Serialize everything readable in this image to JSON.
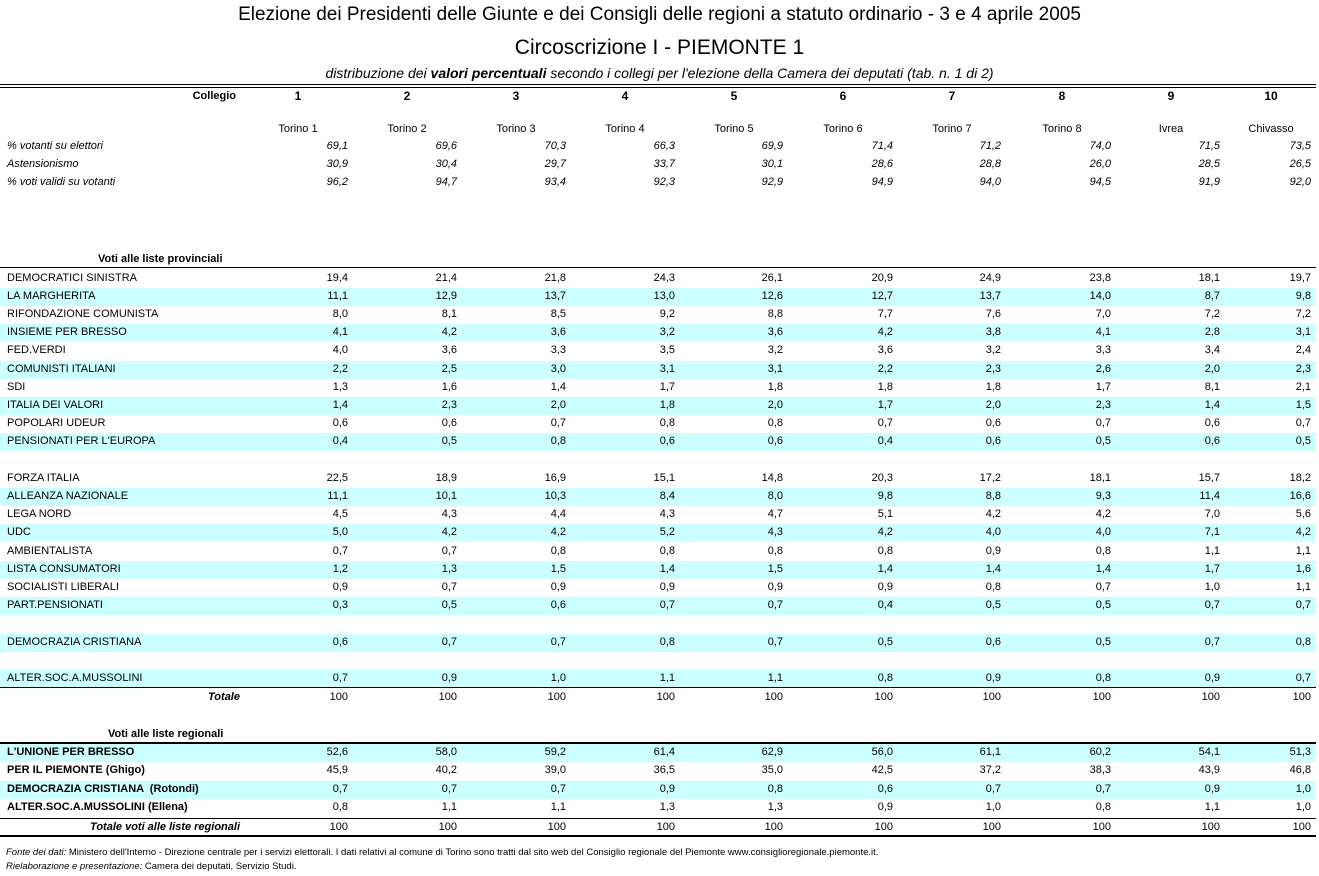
{
  "header": {
    "title": "Elezione dei Presidenti delle Giunte e dei Consigli delle regioni a statuto ordinario - 3 e 4 aprile 2005",
    "subtitle": "Circoscrizione I - PIEMONTE 1",
    "caption": [
      "distribuzione dei ",
      "valori percentuali",
      " secondo i collegi per l'elezione della Camera dei deputati (tab. n. 1 di 2)"
    ]
  },
  "columns": {
    "label": "Collegio",
    "collegi": [
      {
        "number": "1",
        "name": "Torino 1"
      },
      {
        "number": "2",
        "name": "Torino 2"
      },
      {
        "number": "3",
        "name": "Torino 3"
      },
      {
        "number": "4",
        "name": "Torino 4"
      },
      {
        "number": "5",
        "name": "Torino 5"
      },
      {
        "number": "6",
        "name": "Torino 6"
      },
      {
        "number": "7",
        "name": "Torino 7"
      },
      {
        "number": "8",
        "name": "Torino 8"
      },
      {
        "number": "9",
        "name": "Ivrea"
      },
      {
        "number": "10",
        "name": "Chivasso"
      }
    ]
  },
  "stats": [
    {
      "label": "% votanti su elettori",
      "values": [
        "69,1",
        "69,6",
        "70,3",
        "66,3",
        "69,9",
        "71,4",
        "71,2",
        "74,0",
        "71,5",
        "73,5"
      ]
    },
    {
      "label": "Astensionismo",
      "values": [
        "30,9",
        "30,4",
        "29,7",
        "33,7",
        "30,1",
        "28,6",
        "28,8",
        "26,0",
        "28,5",
        "26,5"
      ]
    },
    {
      "label": "% voti validi su votanti",
      "values": [
        "96,2",
        "94,7",
        "93,4",
        "92,3",
        "92,9",
        "94,9",
        "94,0",
        "94,5",
        "91,9",
        "92,0"
      ]
    }
  ],
  "provincial": {
    "title": "Voti alle liste provinciali",
    "groups": [
      [
        {
          "label": "DEMOCRATICI SINISTRA",
          "values": [
            "19,4",
            "21,4",
            "21,8",
            "24,3",
            "26,1",
            "20,9",
            "24,9",
            "23,8",
            "18,1",
            "19,7"
          ]
        },
        {
          "label": "LA MARGHERITA",
          "values": [
            "11,1",
            "12,9",
            "13,7",
            "13,0",
            "12,6",
            "12,7",
            "13,7",
            "14,0",
            "8,7",
            "9,8"
          ]
        },
        {
          "label": "RIFONDAZIONE COMUNISTA",
          "values": [
            "8,0",
            "8,1",
            "8,5",
            "9,2",
            "8,8",
            "7,7",
            "7,6",
            "7,0",
            "7,2",
            "7,2"
          ]
        },
        {
          "label": "INSIEME PER BRESSO",
          "values": [
            "4,1",
            "4,2",
            "3,6",
            "3,2",
            "3,6",
            "4,2",
            "3,8",
            "4,1",
            "2,8",
            "3,1"
          ]
        },
        {
          "label": "FED.VERDI",
          "values": [
            "4,0",
            "3,6",
            "3,3",
            "3,5",
            "3,2",
            "3,6",
            "3,2",
            "3,3",
            "3,4",
            "2,4"
          ]
        },
        {
          "label": "COMUNISTI ITALIANI",
          "values": [
            "2,2",
            "2,5",
            "3,0",
            "3,1",
            "3,1",
            "2,2",
            "2,3",
            "2,6",
            "2,0",
            "2,3"
          ]
        },
        {
          "label": "SDI",
          "values": [
            "1,3",
            "1,6",
            "1,4",
            "1,7",
            "1,8",
            "1,8",
            "1,8",
            "1,7",
            "8,1",
            "2,1"
          ]
        },
        {
          "label": "ITALIA DEI VALORI",
          "values": [
            "1,4",
            "2,3",
            "2,0",
            "1,8",
            "2,0",
            "1,7",
            "2,0",
            "2,3",
            "1,4",
            "1,5"
          ]
        },
        {
          "label": "POPOLARI UDEUR",
          "values": [
            "0,6",
            "0,6",
            "0,7",
            "0,8",
            "0,8",
            "0,7",
            "0,6",
            "0,7",
            "0,6",
            "0,7"
          ]
        },
        {
          "label": "PENSIONATI PER L'EUROPA",
          "values": [
            "0,4",
            "0,5",
            "0,8",
            "0,6",
            "0,6",
            "0,4",
            "0,6",
            "0,5",
            "0,6",
            "0,5"
          ]
        }
      ],
      [
        {
          "label": "FORZA ITALIA",
          "values": [
            "22,5",
            "18,9",
            "16,9",
            "15,1",
            "14,8",
            "20,3",
            "17,2",
            "18,1",
            "15,7",
            "18,2"
          ]
        },
        {
          "label": "ALLEANZA NAZIONALE",
          "values": [
            "11,1",
            "10,1",
            "10,3",
            "8,4",
            "8,0",
            "9,8",
            "8,8",
            "9,3",
            "11,4",
            "16,6"
          ]
        },
        {
          "label": "LEGA NORD",
          "values": [
            "4,5",
            "4,3",
            "4,4",
            "4,3",
            "4,7",
            "5,1",
            "4,2",
            "4,2",
            "7,0",
            "5,6"
          ]
        },
        {
          "label": "UDC",
          "values": [
            "5,0",
            "4,2",
            "4,2",
            "5,2",
            "4,3",
            "4,2",
            "4,0",
            "4,0",
            "7,1",
            "4,2"
          ]
        },
        {
          "label": "AMBIENTALISTA",
          "values": [
            "0,7",
            "0,7",
            "0,8",
            "0,8",
            "0,8",
            "0,8",
            "0,9",
            "0,8",
            "1,1",
            "1,1"
          ]
        },
        {
          "label": "LISTA CONSUMATORI",
          "values": [
            "1,2",
            "1,3",
            "1,5",
            "1,4",
            "1,5",
            "1,4",
            "1,4",
            "1,4",
            "1,7",
            "1,6"
          ]
        },
        {
          "label": "SOCIALISTI LIBERALI",
          "values": [
            "0,9",
            "0,7",
            "0,9",
            "0,9",
            "0,9",
            "0,9",
            "0,8",
            "0,7",
            "1,0",
            "1,1"
          ]
        },
        {
          "label": "PART.PENSIONATI",
          "values": [
            "0,3",
            "0,5",
            "0,6",
            "0,7",
            "0,7",
            "0,4",
            "0,5",
            "0,5",
            "0,7",
            "0,7"
          ]
        }
      ],
      [
        {
          "label": "DEMOCRAZIA CRISTIANA",
          "values": [
            "0,6",
            "0,7",
            "0,7",
            "0,8",
            "0,7",
            "0,5",
            "0,6",
            "0,5",
            "0,7",
            "0,8"
          ]
        }
      ],
      [
        {
          "label": "ALTER.SOC.A.MUSSOLINI",
          "values": [
            "0,7",
            "0,9",
            "1,0",
            "1,1",
            "1,1",
            "0,8",
            "0,9",
            "0,8",
            "0,9",
            "0,7"
          ]
        }
      ]
    ],
    "total": {
      "label": "Totale",
      "values": [
        "100",
        "100",
        "100",
        "100",
        "100",
        "100",
        "100",
        "100",
        "100",
        "100"
      ]
    }
  },
  "regional": {
    "title": "Voti alle liste regionali",
    "rows": [
      {
        "label": "L'UNIONE PER BRESSO",
        "values": [
          "52,6",
          "58,0",
          "59,2",
          "61,4",
          "62,9",
          "56,0",
          "61,1",
          "60,2",
          "54,1",
          "51,3"
        ]
      },
      {
        "label": "PER IL PIEMONTE (Ghigo)",
        "values": [
          "45,9",
          "40,2",
          "39,0",
          "36,5",
          "35,0",
          "42,5",
          "37,2",
          "38,3",
          "43,9",
          "46,8"
        ]
      },
      {
        "label": "DEMOCRAZIA CRISTIANA  (Rotondi)",
        "values": [
          "0,7",
          "0,7",
          "0,7",
          "0,9",
          "0,8",
          "0,6",
          "0,7",
          "0,7",
          "0,9",
          "1,0"
        ]
      },
      {
        "label": "ALTER.SOC.A.MUSSOLINI (Ellena)",
        "values": [
          "0,8",
          "1,1",
          "1,1",
          "1,3",
          "1,3",
          "0,9",
          "1,0",
          "0,8",
          "1,1",
          "1,0"
        ]
      }
    ],
    "total": {
      "label": "Totale voti alle liste regionali",
      "values": [
        "100",
        "100",
        "100",
        "100",
        "100",
        "100",
        "100",
        "100",
        "100",
        "100"
      ]
    }
  },
  "footer": {
    "source": {
      "label": "Fonte dei dati:",
      "text": " Ministero dell'Interno - Direzione centrale per i servizi elettorali. I dati relativi al comune di Torino sono tratti dal sito web del Consiglio regionale del Piemonte www.consiglioregionale.piemonte.it."
    },
    "credits": {
      "label": "Rielaborazione e presentazione:",
      "text": " Camera dei deputati, Servizio Studi."
    }
  }
}
